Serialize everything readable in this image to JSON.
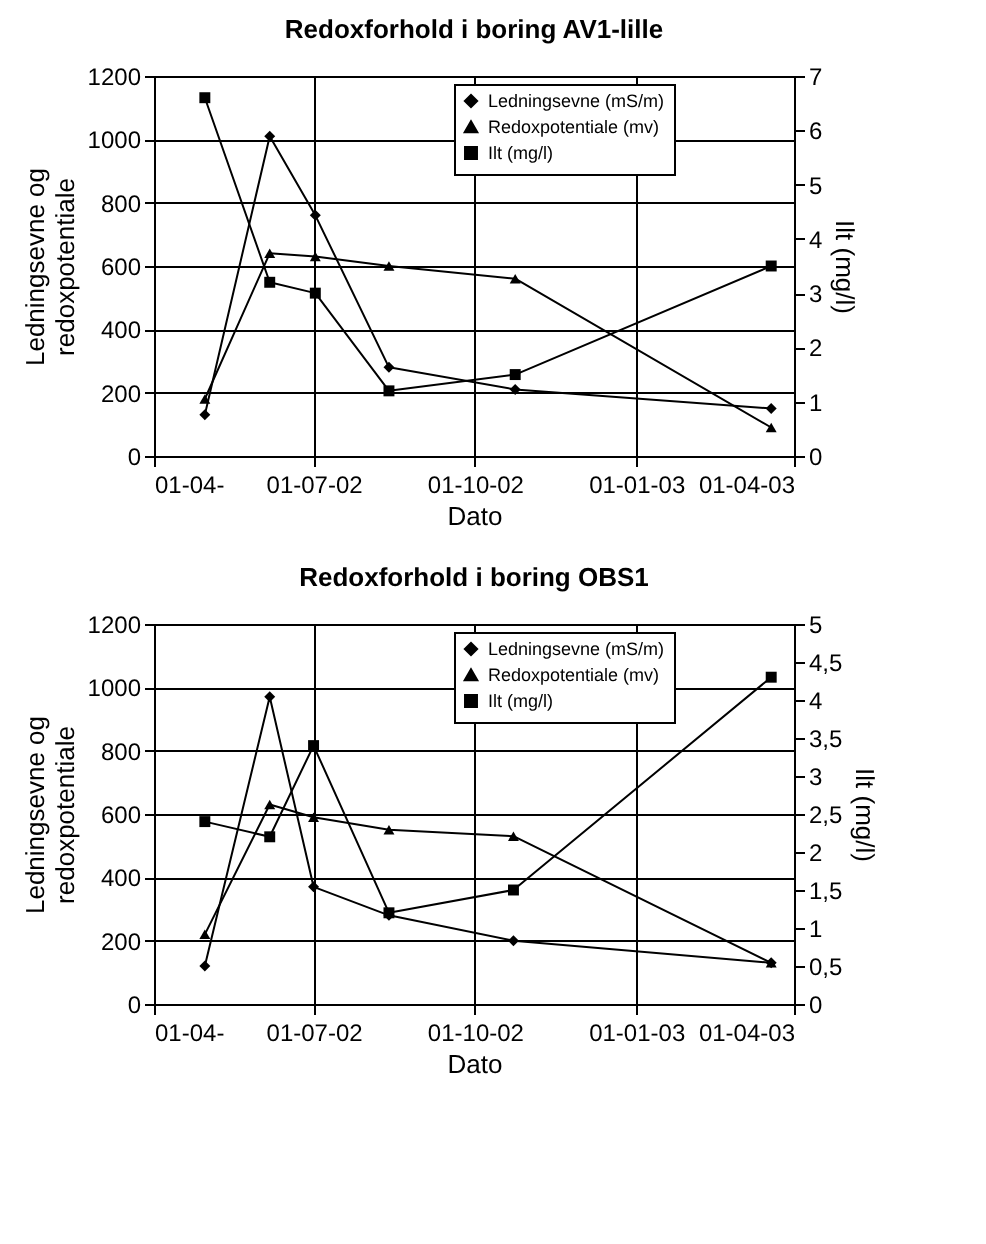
{
  "chart_data": [
    {
      "type": "line",
      "title": "Redoxforhold i boring AV1-lille",
      "xlabel": "Dato",
      "ylabel": "Ledningsevne og redoxpotentiale",
      "y2label": "Ilt (mg/l)",
      "x": [
        "2002-04-30",
        "2002-06-06",
        "2002-07-02",
        "2002-08-13",
        "2002-10-24",
        "2003-03-19"
      ],
      "xlim": [
        "2002-04-01",
        "2003-04-01"
      ],
      "xticks": [
        {
          "value": "2002-04-01",
          "label": "01-04-"
        },
        {
          "value": "2002-07-01",
          "label": "01-07-02"
        },
        {
          "value": "2002-10-01",
          "label": "01-10-02"
        },
        {
          "value": "2003-01-01",
          "label": "01-01-03"
        },
        {
          "value": "2003-04-01",
          "label": "01-04-03"
        }
      ],
      "ylim": [
        0,
        1200
      ],
      "yticks": [
        0,
        200,
        400,
        600,
        800,
        1000,
        1200
      ],
      "y2lim": [
        0,
        7
      ],
      "y2ticks": [
        0,
        1,
        2,
        3,
        4,
        5,
        6,
        7
      ],
      "series": [
        {
          "name": "Ledningsevne (mS/m)",
          "color": "#000000",
          "marker": "diamond",
          "values": [
            130,
            1010,
            760,
            280,
            210,
            150
          ]
        },
        {
          "name": "Redoxpotentiale (mv)",
          "color": "#000000",
          "marker": "triangle",
          "values": [
            180,
            640,
            630,
            600,
            560,
            90
          ]
        },
        {
          "name": "Ilt (mg/l)",
          "color": "#000000",
          "marker": "square",
          "axis": "y2",
          "values": [
            6.6,
            3.2,
            3.0,
            1.2,
            1.5,
            3.5
          ]
        }
      ],
      "grid": true,
      "legend": "top right"
    },
    {
      "type": "line",
      "title": "Redoxforhold i boring OBS1",
      "xlabel": "Dato",
      "ylabel": "Ledningsevne og redoxpotentiale",
      "y2label": "Ilt (mg/l)",
      "x": [
        "2002-04-30",
        "2002-06-06",
        "2002-07-01",
        "2002-08-13",
        "2002-10-23",
        "2003-03-19"
      ],
      "xlim": [
        "2002-04-01",
        "2003-04-01"
      ],
      "xticks": [
        {
          "value": "2002-04-01",
          "label": "01-04-"
        },
        {
          "value": "2002-07-01",
          "label": "01-07-02"
        },
        {
          "value": "2002-10-01",
          "label": "01-10-02"
        },
        {
          "value": "2003-01-01",
          "label": "01-01-03"
        },
        {
          "value": "2003-04-01",
          "label": "01-04-03"
        }
      ],
      "ylim": [
        0,
        1200
      ],
      "yticks": [
        0,
        200,
        400,
        600,
        800,
        1000,
        1200
      ],
      "y2lim": [
        0,
        5
      ],
      "y2ticks": [
        0,
        {
          "value": 0.5,
          "label": "0,5"
        },
        1,
        {
          "value": 1.5,
          "label": "1,5"
        },
        2,
        {
          "value": 2.5,
          "label": "2,5"
        },
        3,
        {
          "value": 3.5,
          "label": "3,5"
        },
        4,
        {
          "value": 4.5,
          "label": "4,5"
        },
        5
      ],
      "series": [
        {
          "name": "Ledningsevne (mS/m)",
          "color": "#000000",
          "marker": "diamond",
          "values": [
            120,
            970,
            370,
            280,
            200,
            130
          ]
        },
        {
          "name": "Redoxpotentiale (mv)",
          "color": "#000000",
          "marker": "triangle",
          "values": [
            220,
            630,
            590,
            550,
            530,
            130
          ]
        },
        {
          "name": "Ilt (mg/l)",
          "color": "#000000",
          "marker": "square",
          "axis": "y2",
          "values": [
            2.4,
            2.2,
            3.4,
            1.2,
            1.5,
            4.3
          ]
        }
      ],
      "grid": true,
      "legend": "top right"
    }
  ]
}
